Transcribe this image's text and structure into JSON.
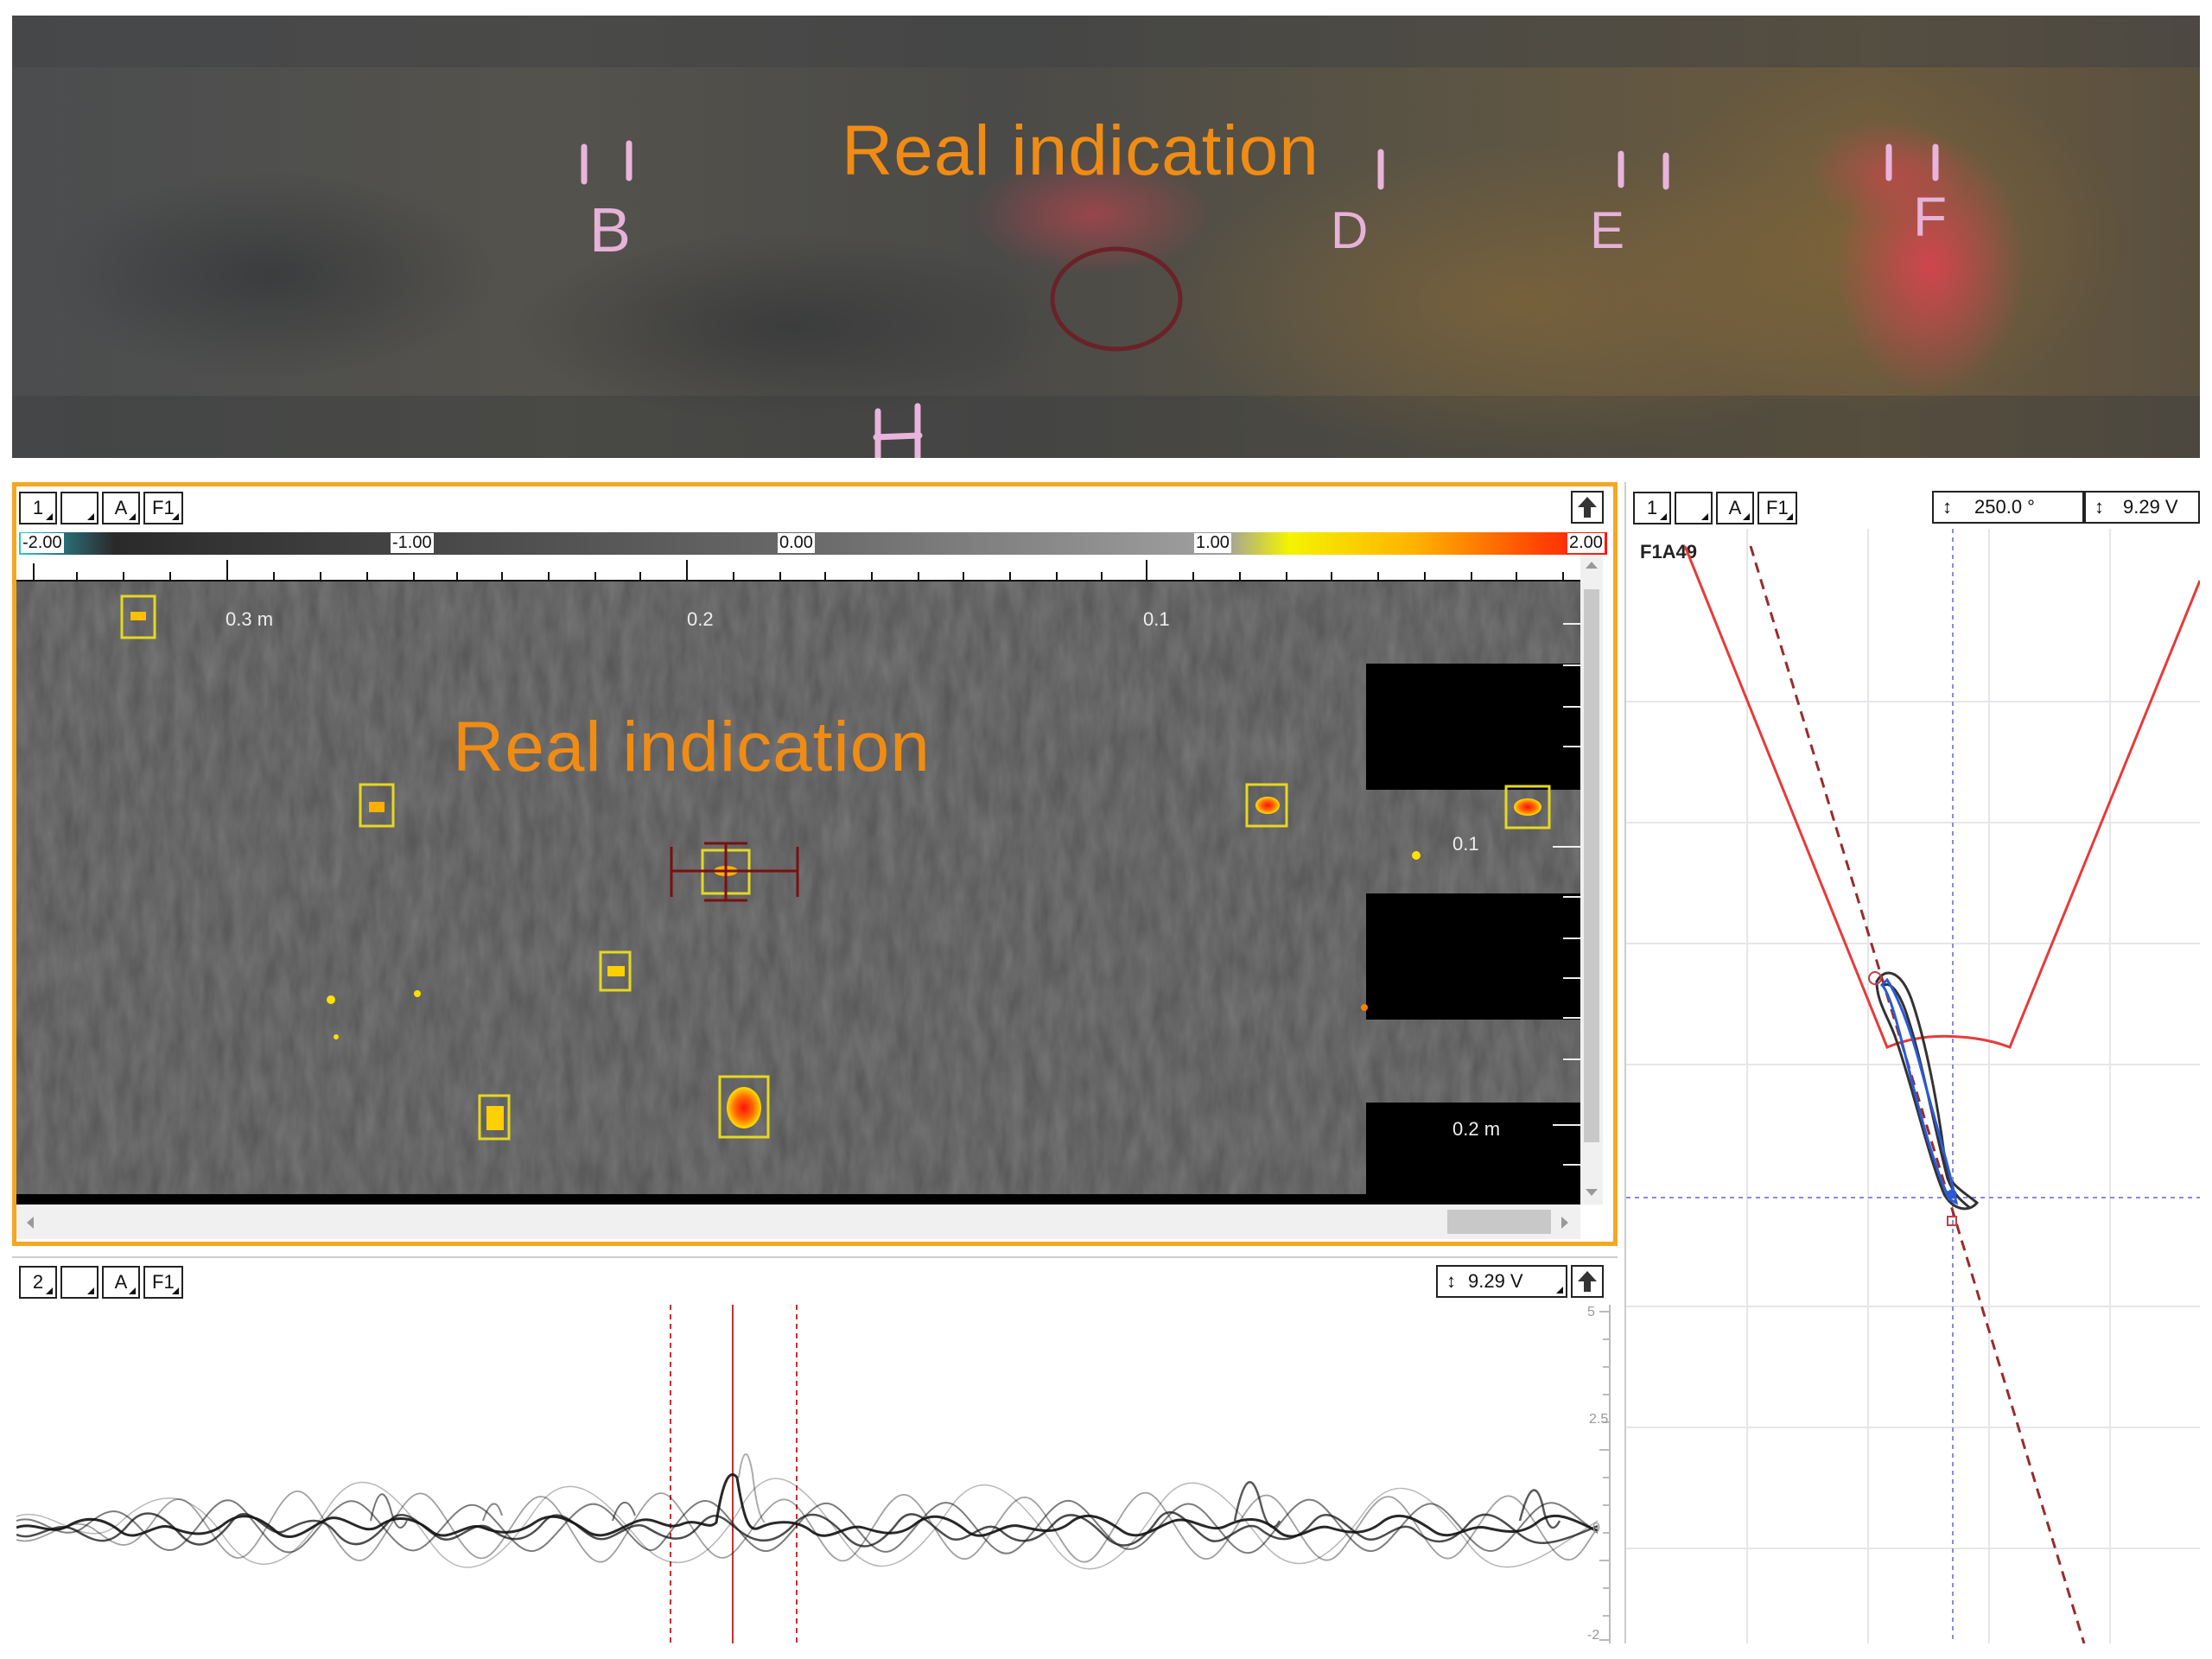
{
  "photo": {
    "annotation": "Real indication",
    "marks": [
      "B",
      "D",
      "E",
      "F"
    ]
  },
  "cscan": {
    "toolbar": {
      "channel": "1",
      "blank": "",
      "mode": "A",
      "filter": "F1"
    },
    "colorscale": {
      "min_label": "-2.00",
      "l1": "-1.00",
      "mid_label": "0.00",
      "l2": "1.00",
      "max_label": "2.00"
    },
    "axis": {
      "x1": "0.3 m",
      "x2": "0.2",
      "x3": "0.1",
      "y1": "0.1",
      "y2": "0.2 m"
    },
    "annotation": "Real indication"
  },
  "ascan": {
    "toolbar": {
      "channel": "2",
      "blank": "",
      "mode": "A",
      "filter": "F1"
    },
    "amplitude": "9.29 V",
    "y_ticks": [
      "5",
      "2.5",
      "0",
      "-2"
    ]
  },
  "side": {
    "toolbar": {
      "channel": "1",
      "blank": "",
      "mode": "A",
      "filter": "F1"
    },
    "angle": "250.0 °",
    "amplitude": "9.29 V",
    "label": "F1A49"
  },
  "colors": {
    "accent": "#f5a623",
    "annotation": "#f08c14",
    "bevel": "#e83a3a"
  }
}
